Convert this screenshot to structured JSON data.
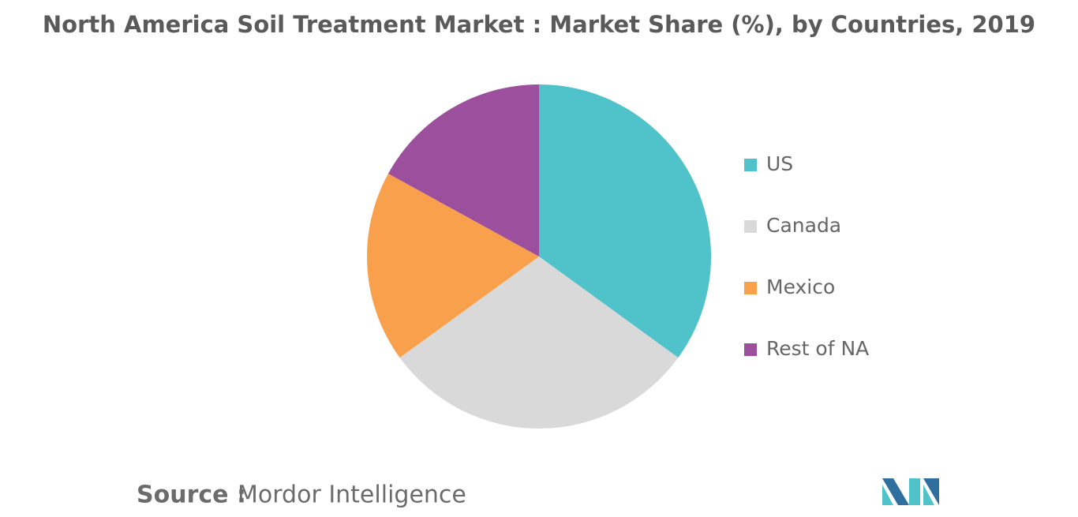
{
  "chart_data": {
    "type": "pie",
    "title": "North America Soil Treatment Market : Market Share (%), by Countries, 2019",
    "categories": [
      "US",
      "Canada",
      "Mexico",
      "Rest of NA"
    ],
    "values": [
      35,
      30,
      18,
      17
    ],
    "colors": [
      "#4fc3c9",
      "#d9d9d9",
      "#f9a04c",
      "#9b4f9d"
    ],
    "legend": "right",
    "source_label": "Source :",
    "source": "Mordor Intelligence"
  }
}
